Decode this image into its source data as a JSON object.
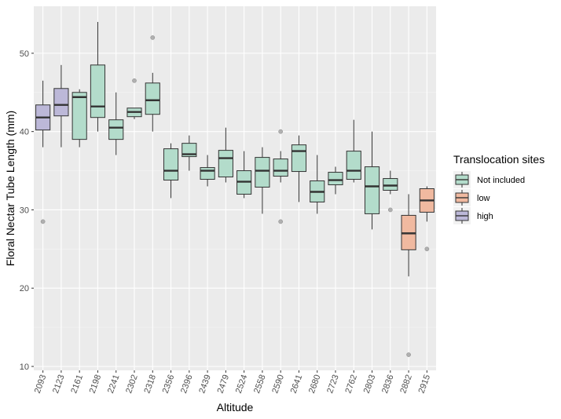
{
  "chart_data": {
    "type": "boxplot",
    "xlabel": "Altitude",
    "ylabel": "Floral Nectar Tube Length (mm)",
    "ylim": [
      9.5,
      56
    ],
    "yticks": [
      10,
      20,
      30,
      40,
      50
    ],
    "grid": true,
    "legend": {
      "title": "Translocation sites",
      "position": "right",
      "entries": [
        {
          "key": "not_included",
          "label": "Not included",
          "color": "#b3dccb"
        },
        {
          "key": "low",
          "label": "low",
          "color": "#f0b9a0"
        },
        {
          "key": "high",
          "label": "high",
          "color": "#bcb8d8"
        }
      ]
    },
    "categories": [
      "2093",
      "2123",
      "2161",
      "2198",
      "2241",
      "2302",
      "2318",
      "2356",
      "2396",
      "2439",
      "2479",
      "2524",
      "2558",
      "2590",
      "2641",
      "2680",
      "2723",
      "2762",
      "2803",
      "2836",
      "2882",
      "2915"
    ],
    "boxes": [
      {
        "x": "2093",
        "group": "high",
        "whislo": 38,
        "q1": 40.2,
        "med": 41.8,
        "q3": 43.4,
        "whishi": 46.5,
        "outliers": [
          28.5
        ]
      },
      {
        "x": "2123",
        "group": "high",
        "whislo": 38,
        "q1": 42,
        "med": 43.4,
        "q3": 45.5,
        "whishi": 48.5,
        "outliers": []
      },
      {
        "x": "2161",
        "group": "not_included",
        "whislo": 38,
        "q1": 39,
        "med": 44.4,
        "q3": 45,
        "whishi": 45.4,
        "outliers": []
      },
      {
        "x": "2198",
        "group": "not_included",
        "whislo": 40,
        "q1": 41.8,
        "med": 43.2,
        "q3": 48.5,
        "whishi": 54,
        "outliers": []
      },
      {
        "x": "2241",
        "group": "not_included",
        "whislo": 37,
        "q1": 39,
        "med": 40.5,
        "q3": 41.5,
        "whishi": 45,
        "outliers": []
      },
      {
        "x": "2302",
        "group": "not_included",
        "whislo": 41.6,
        "q1": 41.9,
        "med": 42.5,
        "q3": 43,
        "whishi": 43,
        "outliers": [
          46.5
        ]
      },
      {
        "x": "2318",
        "group": "not_included",
        "whislo": 40,
        "q1": 42.2,
        "med": 44,
        "q3": 46.2,
        "whishi": 47.5,
        "outliers": [
          52
        ]
      },
      {
        "x": "2356",
        "group": "not_included",
        "whislo": 31.5,
        "q1": 33.8,
        "med": 35,
        "q3": 37.8,
        "whishi": 38.5,
        "outliers": []
      },
      {
        "x": "2396",
        "group": "not_included",
        "whislo": 35,
        "q1": 36.8,
        "med": 37.1,
        "q3": 38.5,
        "whishi": 39.5,
        "outliers": []
      },
      {
        "x": "2439",
        "group": "not_included",
        "whislo": 33,
        "q1": 33.9,
        "med": 35,
        "q3": 35.4,
        "whishi": 37,
        "outliers": []
      },
      {
        "x": "2479",
        "group": "not_included",
        "whislo": 33.5,
        "q1": 34.2,
        "med": 36.6,
        "q3": 37.6,
        "whishi": 40.5,
        "outliers": []
      },
      {
        "x": "2524",
        "group": "not_included",
        "whislo": 31.5,
        "q1": 32,
        "med": 33.6,
        "q3": 35,
        "whishi": 37.5,
        "outliers": []
      },
      {
        "x": "2558",
        "group": "not_included",
        "whislo": 29.5,
        "q1": 32.9,
        "med": 35,
        "q3": 36.7,
        "whishi": 38,
        "outliers": []
      },
      {
        "x": "2590",
        "group": "not_included",
        "whislo": 33.5,
        "q1": 34.3,
        "med": 35,
        "q3": 36.5,
        "whishi": 37.5,
        "outliers": [
          40,
          28.5
        ]
      },
      {
        "x": "2641",
        "group": "not_included",
        "whislo": 31,
        "q1": 34.9,
        "med": 37.5,
        "q3": 38.3,
        "whishi": 39.5,
        "outliers": []
      },
      {
        "x": "2680",
        "group": "not_included",
        "whislo": 29.5,
        "q1": 31,
        "med": 32.3,
        "q3": 33.7,
        "whishi": 37,
        "outliers": []
      },
      {
        "x": "2723",
        "group": "not_included",
        "whislo": 32,
        "q1": 33.2,
        "med": 33.8,
        "q3": 34.8,
        "whishi": 35.5,
        "outliers": []
      },
      {
        "x": "2762",
        "group": "not_included",
        "whislo": 33.5,
        "q1": 33.9,
        "med": 35,
        "q3": 37.5,
        "whishi": 41.5,
        "outliers": []
      },
      {
        "x": "2803",
        "group": "not_included",
        "whislo": 27.5,
        "q1": 29.5,
        "med": 33,
        "q3": 35.5,
        "whishi": 40,
        "outliers": []
      },
      {
        "x": "2836",
        "group": "not_included",
        "whislo": 32,
        "q1": 32.5,
        "med": 33.1,
        "q3": 34,
        "whishi": 35,
        "outliers": [
          30
        ]
      },
      {
        "x": "2882",
        "group": "low",
        "whislo": 21.5,
        "q1": 24.9,
        "med": 27,
        "q3": 29.3,
        "whishi": 32,
        "outliers": [
          11.5
        ]
      },
      {
        "x": "2915",
        "group": "low",
        "whislo": 28.5,
        "q1": 29.7,
        "med": 31.2,
        "q3": 32.7,
        "whishi": 33,
        "outliers": [
          25
        ]
      }
    ]
  }
}
